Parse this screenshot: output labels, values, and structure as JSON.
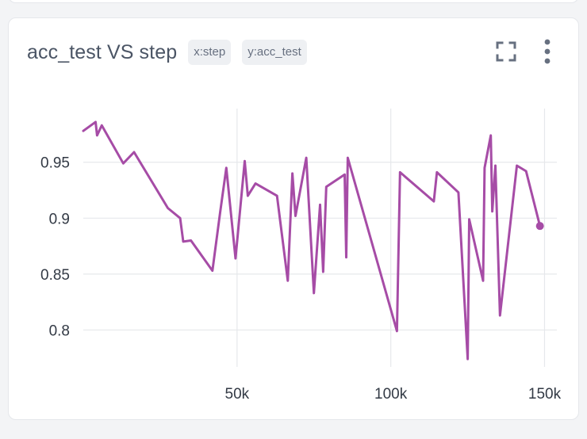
{
  "card": {
    "title": "acc_test VS step",
    "x_tag": "x:step",
    "y_tag": "y:acc_test"
  },
  "icons": {
    "fullscreen": "fullscreen-icon",
    "menu": "more-vertical-icon"
  },
  "chart_data": {
    "type": "line",
    "title": "acc_test VS step",
    "xlabel": "",
    "ylabel": "",
    "grid": true,
    "xlim": [
      0,
      154000
    ],
    "ylim": [
      0.767,
      0.998
    ],
    "x_ticks": [
      50000,
      100000,
      150000
    ],
    "x_tick_labels": [
      "50k",
      "100k",
      "150k"
    ],
    "y_ticks": [
      0.8,
      0.85,
      0.9,
      0.95
    ],
    "y_tick_labels": [
      "0.8",
      "0.85",
      "0.9",
      "0.95"
    ],
    "series": [
      {
        "color": "#a64ca6",
        "x": [
          0,
          4000,
          4500,
          6000,
          13000,
          16500,
          27500,
          31500,
          32500,
          35000,
          42000,
          44500,
          46500,
          49500,
          52500,
          53500,
          56000,
          63000,
          66500,
          68000,
          69000,
          72500,
          75000,
          77000,
          78000,
          79000,
          85000,
          85500,
          86000,
          102000,
          103000,
          114000,
          115000,
          122000,
          125000,
          125500,
          130000,
          130500,
          132500,
          133000,
          134000,
          135500,
          141000,
          144000,
          148500
        ],
        "y": [
          0.978,
          0.986,
          0.974,
          0.983,
          0.949,
          0.959,
          0.909,
          0.9,
          0.879,
          0.88,
          0.853,
          0.905,
          0.945,
          0.864,
          0.951,
          0.92,
          0.931,
          0.92,
          0.844,
          0.94,
          0.902,
          0.954,
          0.833,
          0.912,
          0.852,
          0.928,
          0.939,
          0.865,
          0.954,
          0.799,
          0.941,
          0.915,
          0.941,
          0.923,
          0.774,
          0.899,
          0.844,
          0.945,
          0.974,
          0.906,
          0.947,
          0.813,
          0.947,
          0.942,
          0.893
        ]
      }
    ]
  }
}
